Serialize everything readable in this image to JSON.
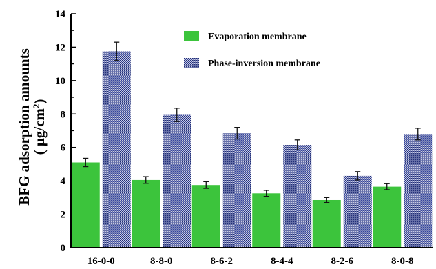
{
  "chart_data": {
    "type": "bar",
    "categories": [
      "16-0-0",
      "8-8-0",
      "8-6-2",
      "8-4-4",
      "8-2-6",
      "8-0-8"
    ],
    "series": [
      {
        "name": "Evaporation membrane",
        "values": [
          5.1,
          4.05,
          3.75,
          3.25,
          2.85,
          3.65
        ],
        "errors": [
          0.25,
          0.2,
          0.2,
          0.18,
          0.15,
          0.18
        ],
        "color": "#3cc43c"
      },
      {
        "name": "Phase-inversion membrane",
        "values": [
          11.75,
          7.95,
          6.85,
          6.15,
          4.3,
          6.8
        ],
        "errors": [
          0.55,
          0.4,
          0.35,
          0.3,
          0.25,
          0.35
        ],
        "color": "#2e3f8f",
        "pattern": "crosshatch"
      }
    ],
    "ylabel_line1": "BFG adsorption amounts",
    "ylabel_line2_prefix": "( μg/cm",
    "ylabel_line2_sup": "2",
    "ylabel_line2_suffix": ")",
    "ylim": [
      0,
      14
    ],
    "yticks": [
      "0",
      "2",
      "4",
      "6",
      "8",
      "10",
      "12",
      "14"
    ],
    "grid": false,
    "legend_position": "top-right"
  }
}
